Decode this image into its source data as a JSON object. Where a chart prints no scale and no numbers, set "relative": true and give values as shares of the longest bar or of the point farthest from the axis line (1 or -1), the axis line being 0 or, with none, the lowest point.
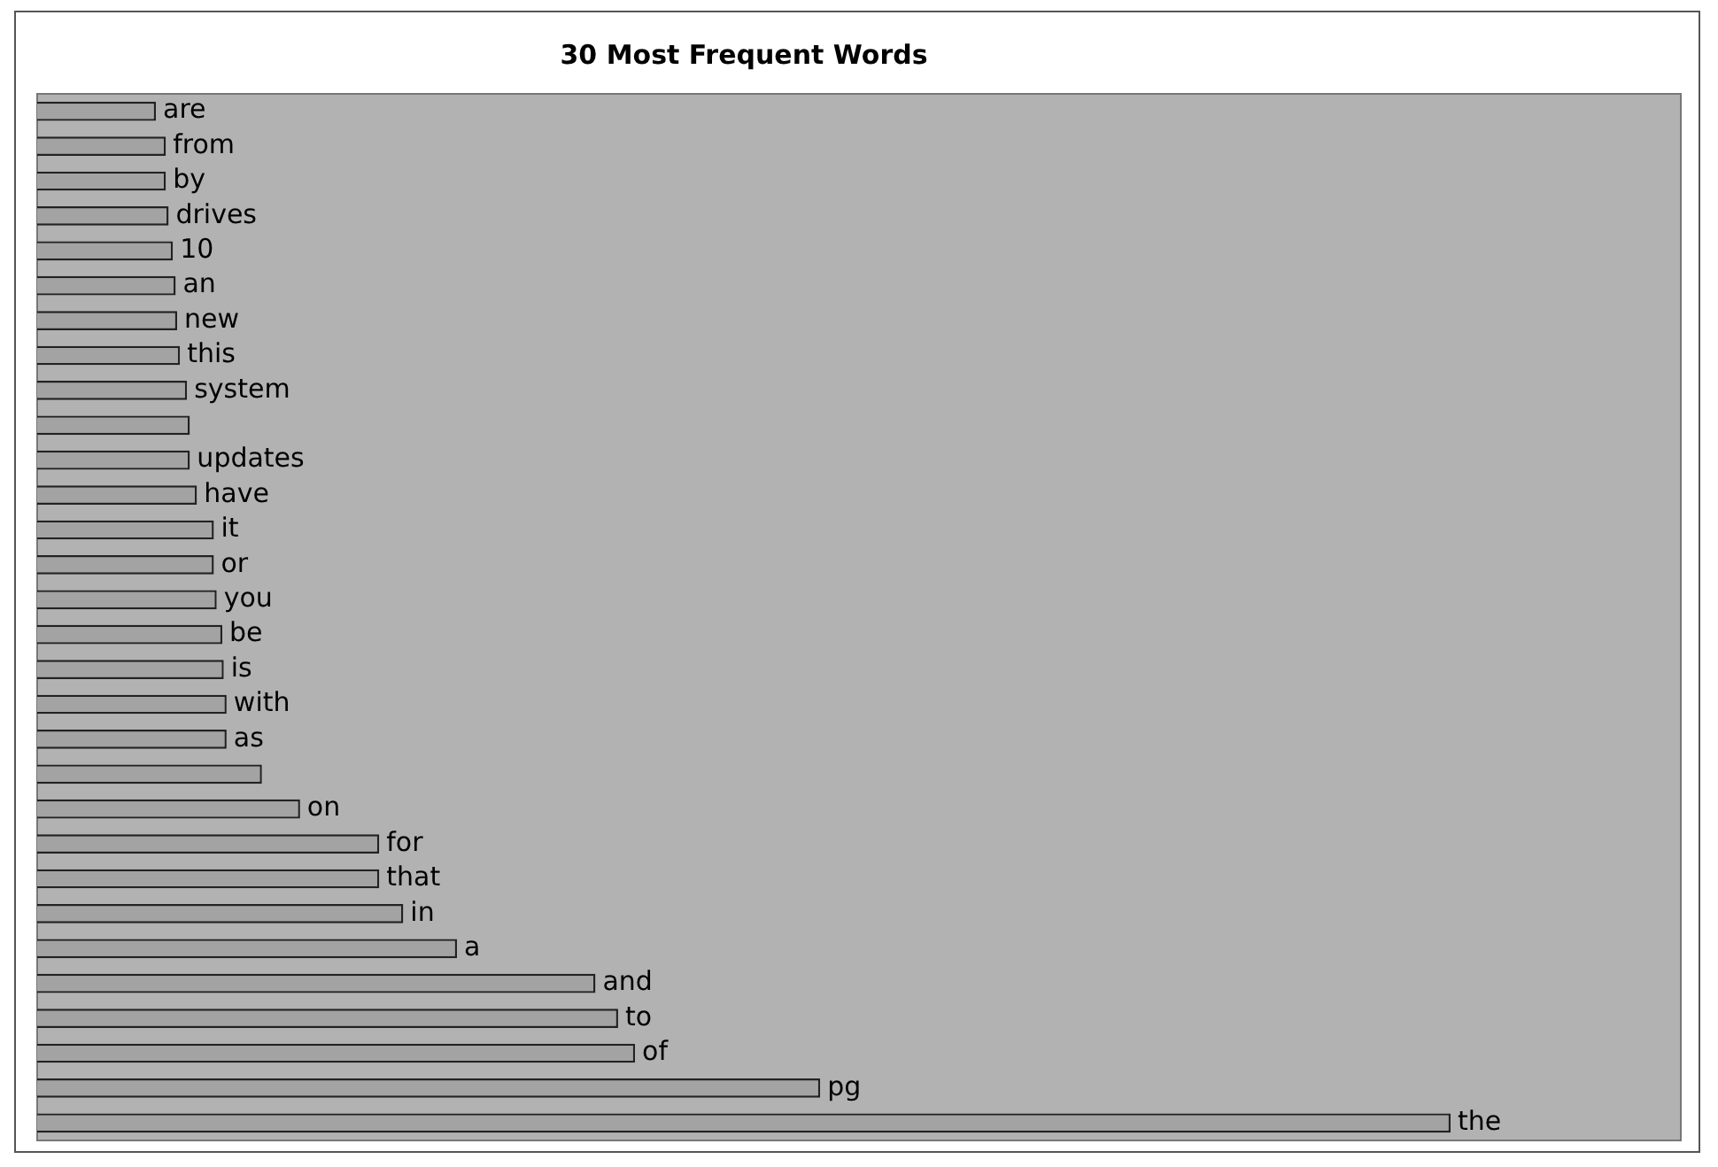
{
  "chart_data": {
    "type": "bar",
    "orientation": "horizontal",
    "relative": true,
    "title": "30 Most Frequent Words",
    "categories": [
      "are",
      "from",
      "by",
      "drives",
      "10",
      "an",
      "new",
      "this",
      "system",
      null,
      "updates",
      "have",
      "it",
      "or",
      "you",
      "be",
      "is",
      "with",
      "as",
      null,
      "on",
      "for",
      "that",
      "in",
      "a",
      "and",
      "to",
      "of",
      "pg",
      "the"
    ],
    "values": [
      0.084,
      0.091,
      0.091,
      0.093,
      0.096,
      0.098,
      0.099,
      0.101,
      0.106,
      0.108,
      0.108,
      0.113,
      0.125,
      0.125,
      0.127,
      0.131,
      0.132,
      0.134,
      0.134,
      0.159,
      0.186,
      0.242,
      0.242,
      0.259,
      0.297,
      0.395,
      0.411,
      0.423,
      0.554,
      1
    ],
    "color": "#a3a3a3",
    "legend": false
  }
}
